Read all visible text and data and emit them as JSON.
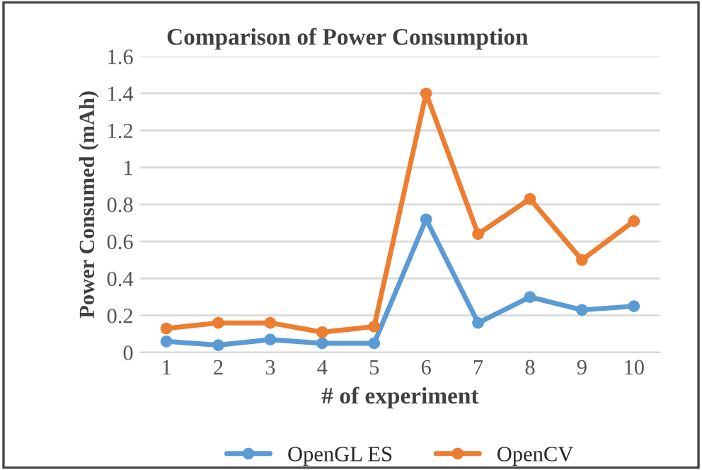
{
  "chart_data": {
    "type": "line",
    "title": "Comparison of Power Consumption",
    "xlabel": "# of experiment",
    "ylabel": "Power Consumed (mAh)",
    "categories": [
      "1",
      "2",
      "3",
      "4",
      "5",
      "6",
      "7",
      "8",
      "9",
      "10"
    ],
    "series": [
      {
        "name": "OpenGL ES",
        "color": "#5b9bd5",
        "values": [
          0.06,
          0.04,
          0.07,
          0.05,
          0.05,
          0.72,
          0.16,
          0.3,
          0.23,
          0.25
        ]
      },
      {
        "name": "OpenCV",
        "color": "#ed7d31",
        "values": [
          0.13,
          0.16,
          0.16,
          0.11,
          0.14,
          1.4,
          0.64,
          0.83,
          0.5,
          0.71
        ]
      }
    ],
    "ylim": [
      0,
      1.6
    ],
    "yticks": [
      0,
      0.2,
      0.4,
      0.6,
      0.8,
      1,
      1.2,
      1.4,
      1.6
    ],
    "grid": "y",
    "legend": "bottom",
    "marker": "circle",
    "line_style": "solid"
  }
}
